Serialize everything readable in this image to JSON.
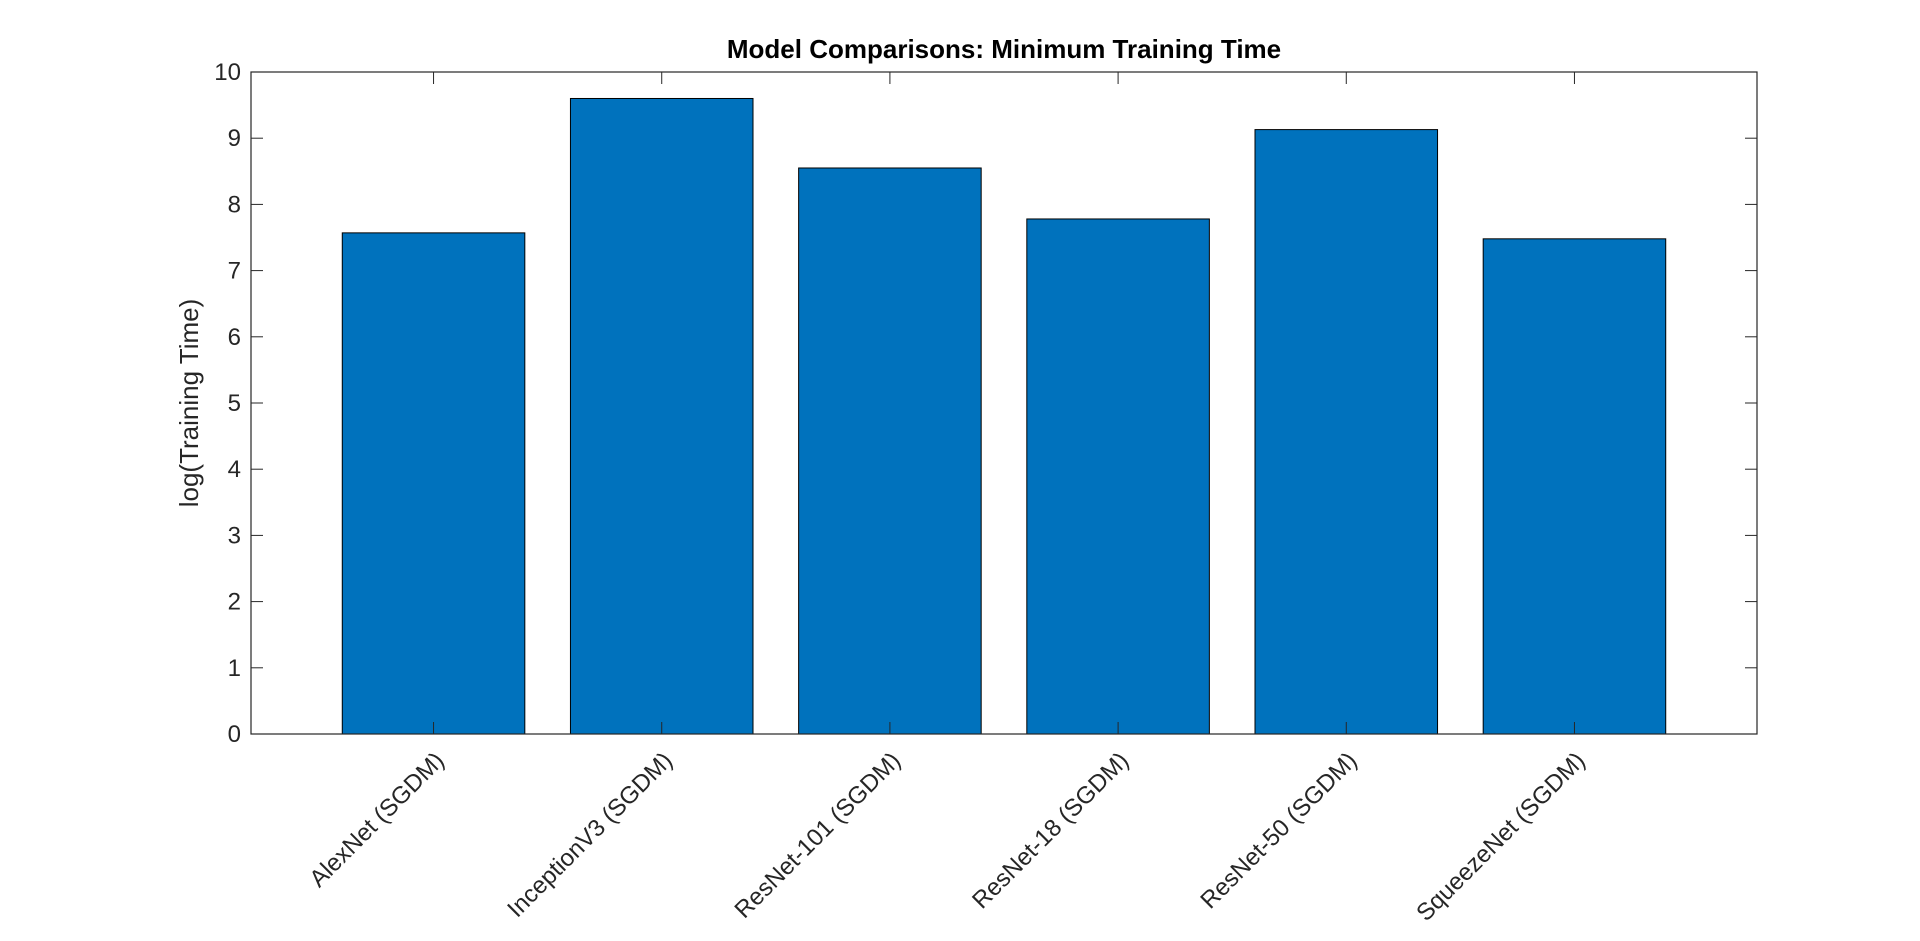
{
  "chart_data": {
    "type": "bar",
    "title": "Model Comparisons: Minimum Training Time",
    "xlabel": "",
    "ylabel": "log(Training Time)",
    "categories": [
      "AlexNet (SGDM)",
      "InceptionV3 (SGDM)",
      "ResNet-101 (SGDM)",
      "ResNet-18 (SGDM)",
      "ResNet-50 (SGDM)",
      "SqueezeNet (SGDM)"
    ],
    "values": [
      7.57,
      9.6,
      8.55,
      7.78,
      9.13,
      7.48
    ],
    "ylim": [
      0,
      10
    ],
    "yticks": [
      "0",
      "1",
      "2",
      "3",
      "4",
      "5",
      "6",
      "7",
      "8",
      "9",
      "10"
    ],
    "grid": false,
    "legend": "none",
    "bar_color": "#0072BD",
    "edge_color": "#000000"
  }
}
